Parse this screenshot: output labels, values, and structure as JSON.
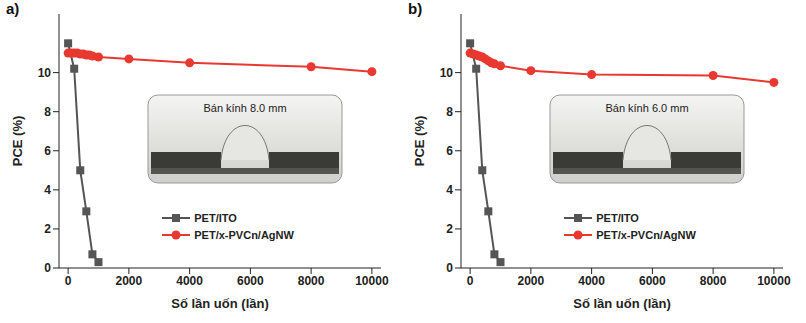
{
  "chart_data": [
    {
      "type": "line",
      "label": "a)",
      "annotation": "Bán kính 8.0 mm",
      "xlabel": "Số lần uốn (lần)",
      "ylabel": "PCE (%)",
      "xlim": [
        -300,
        10300
      ],
      "xticks": [
        0,
        2000,
        4000,
        6000,
        8000,
        10000
      ],
      "ylim": [
        0,
        13
      ],
      "yticks": [
        0,
        2,
        4,
        6,
        8,
        10
      ],
      "legend": "lower center",
      "series": [
        {
          "name": "PET/ITO",
          "color": "#555555",
          "marker": "square",
          "x": [
            0,
            200,
            400,
            600,
            800,
            1000
          ],
          "values": [
            11.5,
            10.2,
            5.0,
            2.9,
            0.7,
            0.3
          ]
        },
        {
          "name": "PET/x-PVCn/AgNW",
          "color": "#e8382f",
          "marker": "circle",
          "x": [
            0,
            100,
            200,
            300,
            400,
            500,
            600,
            700,
            800,
            1000,
            2000,
            4000,
            8000,
            10000
          ],
          "values": [
            11.0,
            11.0,
            11.0,
            11.0,
            10.95,
            10.95,
            10.9,
            10.9,
            10.85,
            10.8,
            10.7,
            10.5,
            10.3,
            10.05
          ]
        }
      ]
    },
    {
      "type": "line",
      "label": "b)",
      "annotation": "Bán kính 6.0 mm",
      "xlabel": "Số lần uốn (lần)",
      "ylabel": "PCE (%)",
      "xlim": [
        -300,
        10300
      ],
      "xticks": [
        0,
        2000,
        4000,
        6000,
        8000,
        10000
      ],
      "ylim": [
        0,
        13
      ],
      "yticks": [
        0,
        2,
        4,
        6,
        8,
        10
      ],
      "legend": "lower center",
      "series": [
        {
          "name": "PET/ITO",
          "color": "#555555",
          "marker": "square",
          "x": [
            0,
            200,
            400,
            600,
            800,
            1000
          ],
          "values": [
            11.5,
            10.2,
            5.0,
            2.9,
            0.7,
            0.3
          ]
        },
        {
          "name": "PET/x-PVCn/AgNW",
          "color": "#e8382f",
          "marker": "circle",
          "x": [
            0,
            100,
            200,
            300,
            400,
            500,
            600,
            700,
            800,
            1000,
            2000,
            4000,
            8000,
            10000
          ],
          "values": [
            11.0,
            10.95,
            10.9,
            10.85,
            10.8,
            10.7,
            10.6,
            10.5,
            10.45,
            10.35,
            10.1,
            9.9,
            9.85,
            9.5
          ]
        }
      ]
    }
  ]
}
